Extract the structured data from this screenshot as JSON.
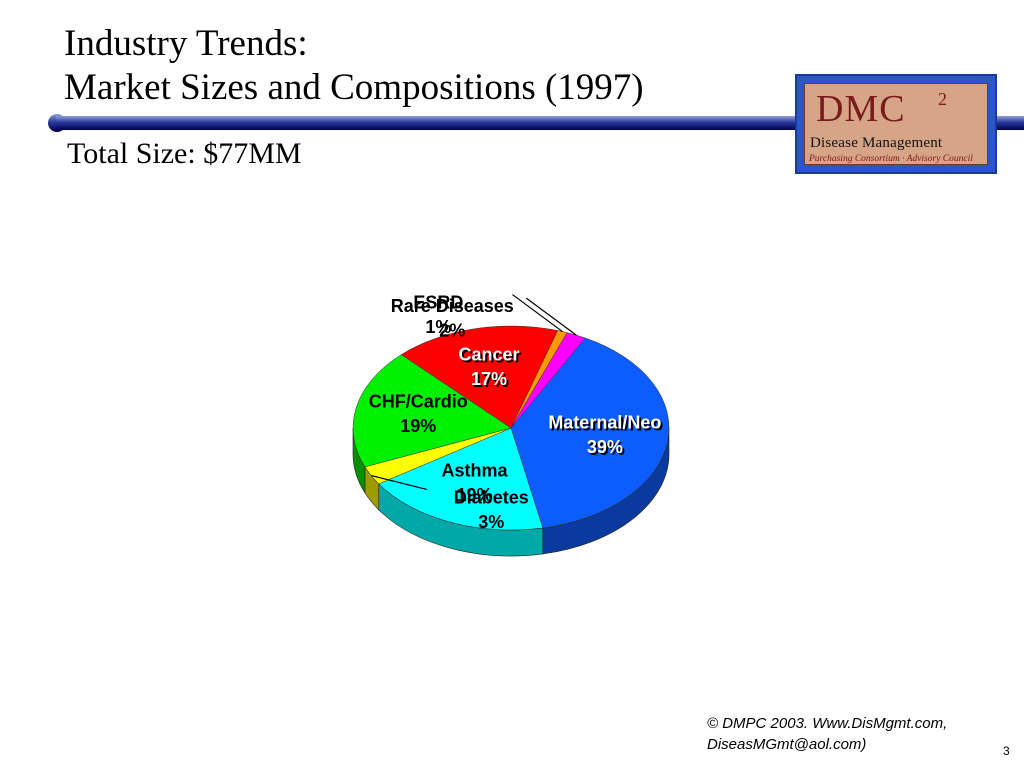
{
  "slide": {
    "title_line1": "Industry Trends:",
    "title_line2": "Market Sizes and Compositions (1997)",
    "subtitle": "Total Size: $77MM",
    "footer_line1": "© DMPC 2003.  Www.DisMgmt.com,",
    "footer_line2": "DiseasMGmt@aol.com)",
    "page_number": "3"
  },
  "logo": {
    "main": "DMC",
    "superscript": "2",
    "line1": "Disease Management",
    "line2": "Purchasing Consortium · Advisory Council"
  },
  "colors": {
    "rule_dark": "#00004c",
    "rule_light": "#8fa0d8"
  },
  "chart_data": {
    "type": "pie",
    "title": "",
    "slices": [
      {
        "label": "Maternal/Neo",
        "value": 39,
        "value_label": "39%",
        "color": "#0d5cff",
        "side": "#0a3a9e",
        "label_pos": "inside",
        "label_style": "shadow"
      },
      {
        "label": "Asthma",
        "value": 19,
        "value_label": "19%",
        "color": "#00ffff",
        "side": "#00a8a8",
        "label_pos": "inside",
        "label_style": "plain"
      },
      {
        "label": "Diabetes",
        "value": 3,
        "value_label": "3%",
        "color": "#ffff00",
        "side": "#9c9c00",
        "label_pos": "outside-right",
        "label_style": "plain"
      },
      {
        "label": "CHF/Cardio",
        "value": 19,
        "value_label": "19%",
        "color": "#00f000",
        "side": "#089000",
        "label_pos": "inside",
        "label_style": "plain"
      },
      {
        "label": "Cancer",
        "value": 17,
        "value_label": "17%",
        "color": "#ff0000",
        "side": "#8a0000",
        "label_pos": "inside",
        "label_style": "shadow"
      },
      {
        "label": "ESRD",
        "value": 1,
        "value_label": "1%",
        "color": "#ff9900",
        "side": "#a05a00",
        "label_pos": "outside-left",
        "label_style": "plain"
      },
      {
        "label": "Rare Diseases",
        "value": 2,
        "value_label": "2%",
        "color": "#ff00ff",
        "side": "#9a009a",
        "label_pos": "outside-left",
        "label_style": "plain"
      }
    ]
  }
}
